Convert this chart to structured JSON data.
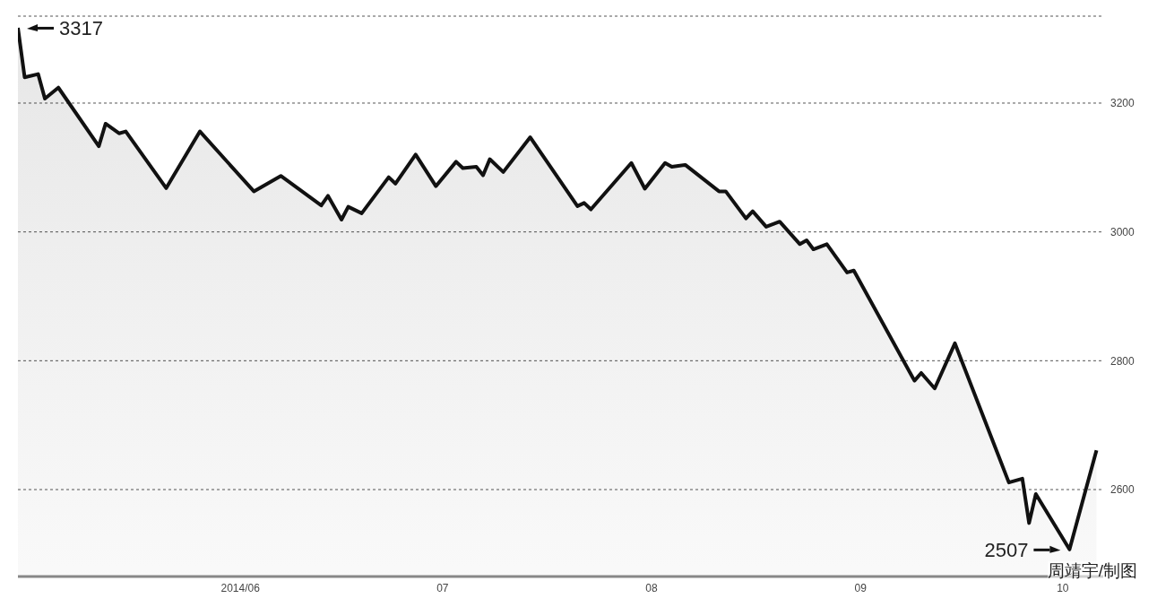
{
  "chart_data": {
    "type": "area",
    "x": [
      "2014-04-29",
      "2014-04-30",
      "2014-05-02",
      "2014-05-03",
      "2014-05-05",
      "2014-05-11",
      "2014-05-12",
      "2014-05-14",
      "2014-05-15",
      "2014-05-21",
      "2014-05-26",
      "2014-06-03",
      "2014-06-07",
      "2014-06-13",
      "2014-06-14",
      "2014-06-16",
      "2014-06-17",
      "2014-06-19",
      "2014-06-23",
      "2014-06-24",
      "2014-06-27",
      "2014-06-30",
      "2014-07-03",
      "2014-07-04",
      "2014-07-06",
      "2014-07-07",
      "2014-07-08",
      "2014-07-10",
      "2014-07-14",
      "2014-07-21",
      "2014-07-22",
      "2014-07-23",
      "2014-07-29",
      "2014-07-31",
      "2014-08-03",
      "2014-08-04",
      "2014-08-06",
      "2014-08-11",
      "2014-08-12",
      "2014-08-15",
      "2014-08-16",
      "2014-08-18",
      "2014-08-20",
      "2014-08-23",
      "2014-08-24",
      "2014-08-25",
      "2014-08-27",
      "2014-08-30",
      "2014-08-31",
      "2014-09-09",
      "2014-09-10",
      "2014-09-12",
      "2014-09-15",
      "2014-09-23",
      "2014-09-25",
      "2014-09-26",
      "2014-09-27",
      "2014-10-02",
      "2014-10-06"
    ],
    "series": [
      {
        "color": "#111111",
        "values": [
          3317,
          3240,
          3245,
          3207,
          3224,
          3133,
          3168,
          3153,
          3156,
          3068,
          3156,
          3063,
          3087,
          3041,
          3056,
          3019,
          3039,
          3029,
          3085,
          3075,
          3120,
          3071,
          3109,
          3099,
          3101,
          3088,
          3113,
          3093,
          3147,
          3040,
          3045,
          3035,
          3107,
          3067,
          3107,
          3101,
          3104,
          3063,
          3063,
          3021,
          3032,
          3008,
          3016,
          2981,
          2987,
          2973,
          2981,
          2937,
          2940,
          2769,
          2781,
          2757,
          2827,
          2611,
          2617,
          2548,
          2593,
          2507,
          2661
        ]
      }
    ],
    "xlim": [
      "2014-04-29",
      "2014-10-07"
    ],
    "xticks": [
      {
        "value": "2014-06-01",
        "label": "2014/06"
      },
      {
        "value": "2014-07-01",
        "label": "07"
      },
      {
        "value": "2014-08-01",
        "label": "08"
      },
      {
        "value": "2014-09-01",
        "label": "09"
      },
      {
        "value": "2014-10-01",
        "label": "10"
      }
    ],
    "ylim": [
      2465,
      3335
    ],
    "yticks": [
      2600,
      2800,
      3000,
      3200
    ],
    "grid": "y",
    "legend": false,
    "marker": "none",
    "line_style": "solid",
    "annotations": [
      {
        "text": "3317",
        "x": "2014-04-29",
        "y": 3317
      },
      {
        "text": "2507",
        "x": "2014-10-02",
        "y": 2507
      },
      "周靖宇/制图"
    ]
  }
}
